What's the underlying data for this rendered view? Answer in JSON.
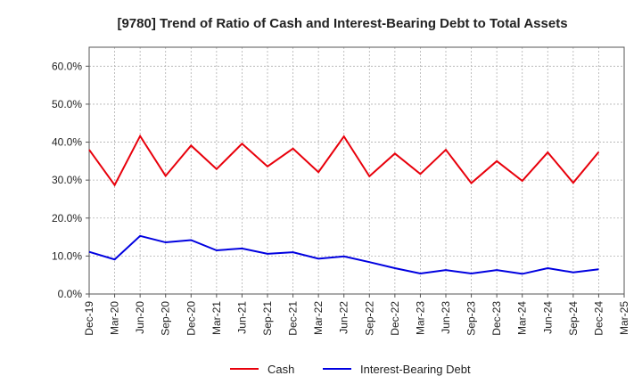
{
  "chart_data": {
    "type": "line",
    "title": "[9780]  Trend of Ratio of Cash and Interest-Bearing Debt to Total Assets",
    "xlabel": "",
    "ylabel": "",
    "ylim": [
      0,
      0.65
    ],
    "yticks": [
      0,
      0.1,
      0.2,
      0.3,
      0.4,
      0.5,
      0.6
    ],
    "ytick_labels": [
      "0.0%",
      "10.0%",
      "20.0%",
      "30.0%",
      "40.0%",
      "50.0%",
      "60.0%"
    ],
    "categories": [
      "Dec-19",
      "Mar-20",
      "Jun-20",
      "Sep-20",
      "Dec-20",
      "Mar-21",
      "Jun-21",
      "Sep-21",
      "Dec-21",
      "Mar-22",
      "Jun-22",
      "Sep-22",
      "Dec-22",
      "Mar-23",
      "Jun-23",
      "Sep-23",
      "Dec-23",
      "Mar-24",
      "Jun-24",
      "Sep-24",
      "Dec-24",
      "Mar-25"
    ],
    "grid": true,
    "legend_position": "bottom",
    "series": [
      {
        "name": "Cash",
        "color": "#e8000b",
        "values": [
          0.38,
          0.287,
          0.416,
          0.311,
          0.391,
          0.329,
          0.396,
          0.336,
          0.383,
          0.321,
          0.415,
          0.31,
          0.37,
          0.316,
          0.38,
          0.292,
          0.35,
          0.298,
          0.373,
          0.293,
          0.374,
          null
        ]
      },
      {
        "name": "Interest-Bearing Debt",
        "color": "#0000e0",
        "values": [
          0.111,
          0.091,
          0.153,
          0.136,
          0.142,
          0.115,
          0.12,
          0.106,
          0.11,
          0.093,
          0.099,
          0.084,
          0.068,
          0.054,
          0.063,
          0.054,
          0.063,
          0.053,
          0.068,
          0.057,
          0.065,
          null
        ]
      }
    ]
  }
}
